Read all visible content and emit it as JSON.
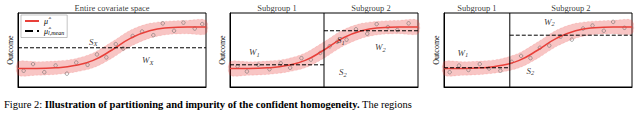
{
  "chart_data": [
    {
      "type": "line",
      "ylabel": "Outcome",
      "xlim": [
        0,
        10
      ],
      "ylim": [
        0,
        10
      ],
      "tick_labels": false,
      "legend": "upper left",
      "x": [
        0,
        1,
        2,
        3,
        4,
        5,
        6,
        7,
        8,
        9,
        10
      ],
      "series": [
        {
          "name": "μ̂",
          "color": "#e8403a",
          "line_style": "solid",
          "values": [
            2.5,
            2.5,
            2.6,
            2.9,
            3.6,
            5.0,
            6.6,
            7.6,
            8.0,
            8.1,
            8.1
          ],
          "band_lower": [
            1.6,
            1.6,
            1.7,
            2.0,
            2.6,
            3.9,
            5.5,
            6.6,
            7.1,
            7.2,
            7.2
          ],
          "band_upper": [
            3.4,
            3.4,
            3.5,
            3.8,
            4.6,
            6.1,
            7.7,
            8.6,
            8.9,
            9.0,
            9.0
          ]
        }
      ],
      "mean_series": {
        "name": "μ̂l,mean",
        "color": "#000000",
        "line_style": "dashed"
      },
      "subgroups": [
        {
          "label": "Entire covariate space",
          "from": 0,
          "to": 10,
          "mean": 5.3
        }
      ],
      "points": {
        "x": [
          0.3,
          0.8,
          1.4,
          2.0,
          2.6,
          3.1,
          3.7,
          4.2,
          4.7,
          5.2,
          5.6,
          6.1,
          6.6,
          7.2,
          7.7,
          8.3,
          8.8,
          9.4,
          9.8
        ],
        "y": [
          2.2,
          3.1,
          2.0,
          2.9,
          1.8,
          3.3,
          3.0,
          4.4,
          4.0,
          5.8,
          5.2,
          6.9,
          7.5,
          7.0,
          8.6,
          7.6,
          8.7,
          7.9,
          8.5
        ]
      },
      "annotations": [
        {
          "text": "S",
          "sub": "X",
          "x": 4.0,
          "y": 6.1
        },
        {
          "text": "W",
          "sub": "X",
          "x": 6.9,
          "y": 3.6
        }
      ]
    },
    {
      "type": "line",
      "ylabel": "Outcome",
      "xlim": [
        0,
        10
      ],
      "ylim": [
        0,
        10
      ],
      "tick_labels": false,
      "x": [
        0,
        1,
        2,
        3,
        4,
        5,
        6,
        7,
        8,
        9,
        10
      ],
      "series": [
        {
          "color": "#e8403a",
          "line_style": "solid",
          "values": [
            2.5,
            2.5,
            2.6,
            2.9,
            3.6,
            5.0,
            6.6,
            7.6,
            8.0,
            8.1,
            8.1
          ],
          "band_lower": [
            1.6,
            1.6,
            1.7,
            2.0,
            2.6,
            3.9,
            5.5,
            6.6,
            7.1,
            7.2,
            7.2
          ],
          "band_upper": [
            3.4,
            3.4,
            3.5,
            3.8,
            4.6,
            6.1,
            7.7,
            8.6,
            8.9,
            9.0,
            9.0
          ]
        }
      ],
      "mean_series": {
        "color": "#000000",
        "line_style": "dashed"
      },
      "subgroups": [
        {
          "label": "Subgroup 1",
          "from": 0,
          "to": 5,
          "mean": 3.0
        },
        {
          "label": "Subgroup 2",
          "from": 5,
          "to": 10,
          "mean": 7.6
        }
      ],
      "points": {
        "x": [
          0.4,
          0.9,
          1.5,
          2.1,
          2.7,
          3.2,
          3.8,
          4.3,
          4.8,
          5.3,
          5.7,
          6.2,
          6.7,
          7.3,
          7.8,
          8.4,
          8.9,
          9.5
        ],
        "y": [
          2.8,
          2.1,
          3.0,
          2.4,
          3.2,
          2.6,
          3.9,
          3.7,
          4.6,
          5.5,
          6.1,
          6.4,
          7.8,
          7.2,
          8.5,
          8.1,
          7.7,
          8.6
        ]
      },
      "annotations": [
        {
          "text": "S",
          "sub": "1",
          "x": 5.9,
          "y": 6.3
        },
        {
          "text": "W",
          "sub": "1",
          "x": 1.3,
          "y": 4.7
        },
        {
          "text": "S",
          "sub": "2",
          "x": 6.0,
          "y": 2.0
        },
        {
          "text": "W",
          "sub": "2",
          "x": 8.0,
          "y": 5.4
        }
      ]
    },
    {
      "type": "line",
      "ylabel": "Outcome",
      "xlim": [
        0,
        10
      ],
      "ylim": [
        0,
        10
      ],
      "tick_labels": false,
      "x": [
        0,
        1,
        2,
        3,
        4,
        5,
        6,
        7,
        8,
        9,
        10
      ],
      "series": [
        {
          "color": "#e8403a",
          "line_style": "solid",
          "values": [
            2.5,
            2.5,
            2.6,
            2.9,
            3.6,
            5.0,
            6.6,
            7.6,
            8.0,
            8.1,
            8.1
          ],
          "band_lower": [
            1.6,
            1.6,
            1.7,
            2.0,
            2.6,
            3.9,
            5.5,
            6.6,
            7.1,
            7.2,
            7.2
          ],
          "band_upper": [
            3.4,
            3.4,
            3.5,
            3.8,
            4.6,
            6.1,
            7.7,
            8.6,
            8.9,
            9.0,
            9.0
          ]
        }
      ],
      "mean_series": {
        "color": "#000000",
        "line_style": "dashed"
      },
      "subgroups": [
        {
          "label": "Subgroup 1",
          "from": 0,
          "to": 3.5,
          "mean": 2.6
        },
        {
          "label": "Subgroup 2",
          "from": 3.5,
          "to": 10,
          "mean": 7.0
        }
      ],
      "points": {
        "x": [
          0.3,
          0.8,
          1.3,
          1.9,
          2.4,
          3.0,
          3.6,
          4.1,
          4.6,
          5.1,
          5.6,
          6.2,
          6.8,
          7.4,
          7.9,
          8.5,
          9.0,
          9.6
        ],
        "y": [
          2.0,
          2.9,
          2.3,
          3.1,
          2.5,
          2.2,
          3.4,
          4.2,
          3.9,
          5.3,
          5.6,
          6.8,
          6.4,
          7.9,
          8.3,
          7.6,
          8.8,
          8.0
        ]
      },
      "annotations": [
        {
          "text": "W",
          "sub": "1",
          "x": 1.0,
          "y": 4.6
        },
        {
          "text": "W",
          "sub": "2",
          "x": 5.6,
          "y": 8.8
        },
        {
          "text": "S",
          "sub": "2",
          "x": 4.6,
          "y": 2.2
        }
      ]
    }
  ],
  "caption": {
    "label": "Figure 2:",
    "bold": "Illustration of partitioning and impurity of the confident homogeneity.",
    "text": "The regions"
  }
}
